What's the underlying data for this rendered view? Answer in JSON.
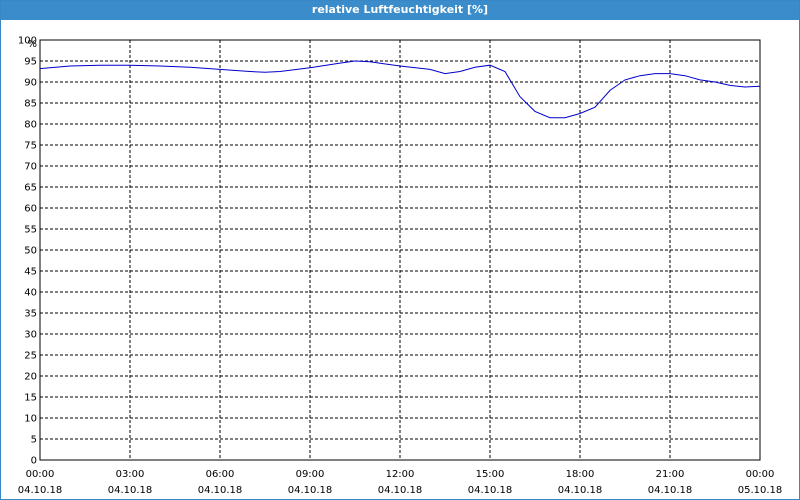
{
  "window": {
    "title": "relative Luftfeuchtigkeit [%]"
  },
  "chart_data": {
    "type": "line",
    "title": "relative Luftfeuchtigkeit [%]",
    "ylabel": "%",
    "xlabel": "",
    "ylim": [
      0,
      100
    ],
    "yticks": [
      0,
      5,
      10,
      15,
      20,
      25,
      30,
      35,
      40,
      45,
      50,
      55,
      60,
      65,
      70,
      75,
      80,
      85,
      90,
      95,
      100
    ],
    "xlim": [
      "04.10.18 00:00",
      "05.10.18 00:00"
    ],
    "xticks": [
      {
        "time": "00:00",
        "date": "04.10.18"
      },
      {
        "time": "03:00",
        "date": "04.10.18"
      },
      {
        "time": "06:00",
        "date": "04.10.18"
      },
      {
        "time": "09:00",
        "date": "04.10.18"
      },
      {
        "time": "12:00",
        "date": "04.10.18"
      },
      {
        "time": "15:00",
        "date": "04.10.18"
      },
      {
        "time": "18:00",
        "date": "04.10.18"
      },
      {
        "time": "21:00",
        "date": "04.10.18"
      },
      {
        "time": "00:00",
        "date": "05.10.18"
      }
    ],
    "grid": true,
    "line_color": "#0000cc",
    "series": [
      {
        "x": [
          "04.10.18 00:00",
          "04.10.18 01:00",
          "04.10.18 02:00",
          "04.10.18 03:00",
          "04.10.18 04:00",
          "04.10.18 05:00",
          "04.10.18 06:00",
          "04.10.18 07:00",
          "04.10.18 07:30",
          "04.10.18 08:00",
          "04.10.18 09:00",
          "04.10.18 10:00",
          "04.10.18 10:30",
          "04.10.18 11:00",
          "04.10.18 12:00",
          "04.10.18 13:00",
          "04.10.18 13:30",
          "04.10.18 14:00",
          "04.10.18 14:30",
          "04.10.18 15:00",
          "04.10.18 15:30",
          "04.10.18 16:00",
          "04.10.18 16:30",
          "04.10.18 17:00",
          "04.10.18 17:30",
          "04.10.18 18:00",
          "04.10.18 18:30",
          "04.10.18 19:00",
          "04.10.18 19:30",
          "04.10.18 20:00",
          "04.10.18 20:30",
          "04.10.18 21:00",
          "04.10.18 21:30",
          "04.10.18 22:00",
          "04.10.18 22:30",
          "04.10.18 23:00",
          "04.10.18 23:30",
          "05.10.18 00:00"
        ],
        "y": [
          93.2,
          93.8,
          94.0,
          94.0,
          93.8,
          93.5,
          93.0,
          92.5,
          92.3,
          92.5,
          93.4,
          94.5,
          95.0,
          94.8,
          93.8,
          93.0,
          92.0,
          92.5,
          93.5,
          94.0,
          92.5,
          86.5,
          83.0,
          81.5,
          81.5,
          82.5,
          84.0,
          88.0,
          90.5,
          91.5,
          92.0,
          92.0,
          91.5,
          90.5,
          90.0,
          89.2,
          88.8,
          89.0
        ]
      }
    ]
  }
}
